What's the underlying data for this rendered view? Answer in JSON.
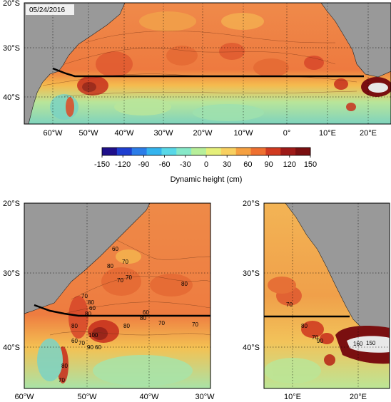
{
  "date_stamp": "05/24/2016",
  "colorbar": {
    "title": "Dynamic height (cm)",
    "ticks": [
      "-150",
      "-120",
      "-90",
      "-60",
      "-30",
      "0",
      "30",
      "60",
      "90",
      "120",
      "150"
    ],
    "colors": [
      "#1f0f8a",
      "#1f3fd0",
      "#2c7de8",
      "#34b4ee",
      "#58d8e8",
      "#86e8c8",
      "#b7ef9a",
      "#e5ef7a",
      "#f8d060",
      "#f5a040",
      "#ee7030",
      "#d03a20",
      "#9e1a18",
      "#7a0f10"
    ]
  },
  "colors": {
    "land": "#999999",
    "ocean_high": "#e8743e",
    "ocean_mid": "#f4c04f",
    "ocean_low": "#8ed8b4",
    "section_line": "#000000"
  },
  "panels": {
    "top": {
      "x_ticks": [
        "60°W",
        "50°W",
        "40°W",
        "30°W",
        "20°W",
        "10°W",
        "0°",
        "10°E",
        "20°E"
      ],
      "y_ticks": [
        "20°S",
        "30°S",
        "40°S"
      ]
    },
    "bottom_left": {
      "x_ticks": [
        "60°W",
        "50°W",
        "40°W",
        "30°W"
      ],
      "y_ticks": [
        "20°S",
        "30°S",
        "40°S"
      ],
      "contour_labels": [
        "60",
        "70",
        "70",
        "80",
        "80",
        "60",
        "80",
        "80",
        "80",
        "60",
        "70",
        "100",
        "90",
        "60",
        "80",
        "70",
        "80",
        "70",
        "60",
        "70",
        "70",
        "80",
        "70"
      ]
    },
    "bottom_right": {
      "x_ticks": [
        "10°E",
        "20°E"
      ],
      "y_ticks": [
        "20°S",
        "30°S",
        "40°S"
      ],
      "contour_labels": [
        "70",
        "80",
        "70",
        "90",
        "160",
        "150"
      ]
    }
  }
}
